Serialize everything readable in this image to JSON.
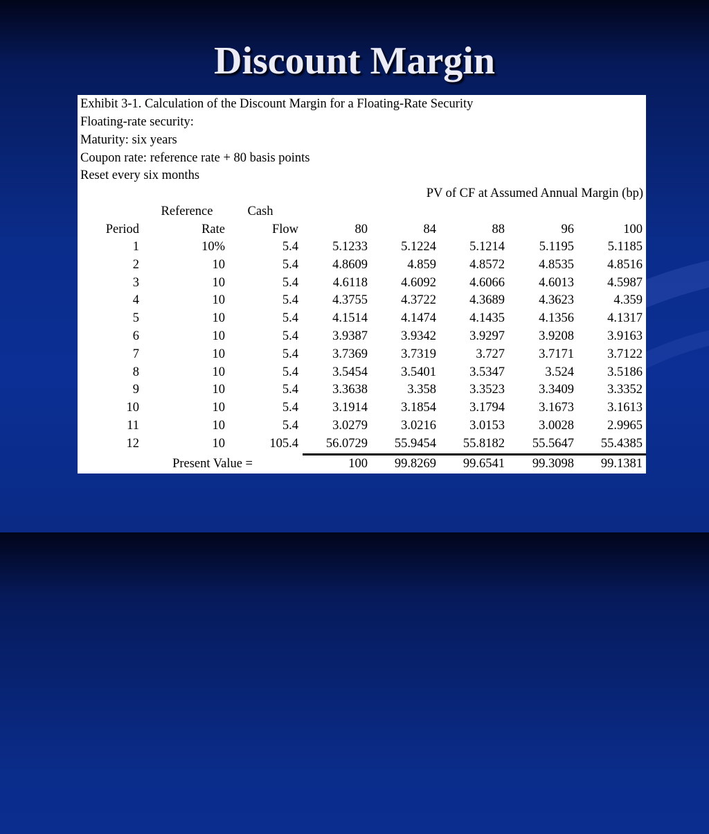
{
  "slide": {
    "title": "Discount Margin"
  },
  "exhibit": {
    "caption": "Exhibit 3-1. Calculation of the Discount Margin for a Floating-Rate Security",
    "lines": [
      "Floating-rate security:",
      "Maturity: six years",
      "Coupon rate: reference rate + 80 basis points",
      "Reset every six months"
    ],
    "pv_group_header": "PV of CF at Assumed Annual Margin (bp)",
    "col_headers_top": [
      "",
      "Reference",
      "Cash",
      "",
      "",
      "",
      "",
      ""
    ],
    "col_headers": [
      "Period",
      "Rate",
      "Flow",
      "80",
      "84",
      "88",
      "96",
      "100"
    ],
    "rows": [
      [
        "1",
        "10%",
        "5.4",
        "5.1233",
        "5.1224",
        "5.1214",
        "5.1195",
        "5.1185"
      ],
      [
        "2",
        "10",
        "5.4",
        "4.8609",
        "4.859",
        "4.8572",
        "4.8535",
        "4.8516"
      ],
      [
        "3",
        "10",
        "5.4",
        "4.6118",
        "4.6092",
        "4.6066",
        "4.6013",
        "4.5987"
      ],
      [
        "4",
        "10",
        "5.4",
        "4.3755",
        "4.3722",
        "4.3689",
        "4.3623",
        "4.359"
      ],
      [
        "5",
        "10",
        "5.4",
        "4.1514",
        "4.1474",
        "4.1435",
        "4.1356",
        "4.1317"
      ],
      [
        "6",
        "10",
        "5.4",
        "3.9387",
        "3.9342",
        "3.9297",
        "3.9208",
        "3.9163"
      ],
      [
        "7",
        "10",
        "5.4",
        "3.7369",
        "3.7319",
        "3.727",
        "3.7171",
        "3.7122"
      ],
      [
        "8",
        "10",
        "5.4",
        "3.5454",
        "3.5401",
        "3.5347",
        "3.524",
        "3.5186"
      ],
      [
        "9",
        "10",
        "5.4",
        "3.3638",
        "3.358",
        "3.3523",
        "3.3409",
        "3.3352"
      ],
      [
        "10",
        "10",
        "5.4",
        "3.1914",
        "3.1854",
        "3.1794",
        "3.1673",
        "3.1613"
      ],
      [
        "11",
        "10",
        "5.4",
        "3.0279",
        "3.0216",
        "3.0153",
        "3.0028",
        "2.9965"
      ],
      [
        "12",
        "10",
        "105.4",
        "56.0729",
        "55.9454",
        "55.8182",
        "55.5647",
        "55.4385"
      ]
    ],
    "present_value_label": "Present Value =",
    "present_values": [
      "100",
      "99.8269",
      "99.6541",
      "99.3098",
      "99.1381"
    ]
  }
}
